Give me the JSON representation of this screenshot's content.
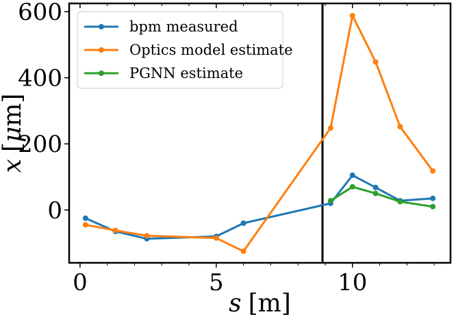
{
  "chart_data": {
    "type": "line",
    "title": "",
    "xlabel_var": "s",
    "xlabel_unit": "[m]",
    "ylabel_var": "x",
    "ylabel_unit_prefix": "[",
    "ylabel_unit_mu": "μ",
    "ylabel_unit_suffix": "m]",
    "xlim": [
      -0.4,
      13.6
    ],
    "ylim": [
      -160,
      625
    ],
    "xticks": [
      0,
      5,
      10
    ],
    "xtick_labels": [
      "0",
      "5",
      "10"
    ],
    "yticks": [
      0,
      200,
      400,
      600
    ],
    "ytick_labels": [
      "0",
      "200",
      "400",
      "600"
    ],
    "grid": false,
    "legend_position": "upper-left",
    "vline_x": 8.9,
    "vline_color": "#000000",
    "series": [
      {
        "name": "bpm measured",
        "color": "#1f77b4",
        "x": [
          0.2,
          1.3,
          2.45,
          5.0,
          6.0,
          9.2,
          10.0,
          10.85,
          11.75,
          12.95
        ],
        "y": [
          -25,
          -65,
          -87,
          -80,
          -40,
          20,
          105,
          68,
          28,
          35
        ]
      },
      {
        "name": "Optics model estimate",
        "color": "#ff7f0e",
        "x": [
          0.2,
          1.3,
          2.45,
          5.0,
          6.0,
          9.2,
          10.0,
          10.85,
          11.75,
          12.95
        ],
        "y": [
          -45,
          -62,
          -78,
          -85,
          -125,
          248,
          588,
          448,
          252,
          118
        ]
      },
      {
        "name": "PGNN estimate",
        "color": "#2ca02c",
        "x": [
          9.2,
          10.0,
          10.85,
          11.75,
          12.95
        ],
        "y": [
          28,
          70,
          50,
          25,
          10
        ]
      }
    ]
  }
}
